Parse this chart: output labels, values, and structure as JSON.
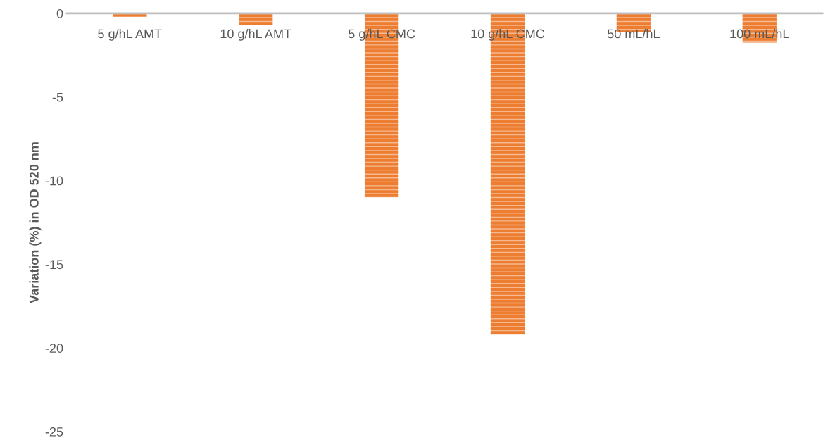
{
  "chart_data": {
    "type": "bar",
    "ylabel": "Variation (%) in OD 520 nm",
    "categories": [
      "5 g/hL AMT",
      "10 g/hL AMT",
      "5 g/hL CMC",
      "10 g/hL CMC",
      "50 mL/hL",
      "100 mL/hL"
    ],
    "values": [
      -0.2,
      -0.7,
      -11.0,
      -19.2,
      -1.1,
      -1.75
    ],
    "color": "#ed7d31",
    "ylim": [
      -25,
      0
    ],
    "yticks": [
      -25,
      -20,
      -15,
      -10,
      -5,
      0
    ],
    "grid": false
  }
}
